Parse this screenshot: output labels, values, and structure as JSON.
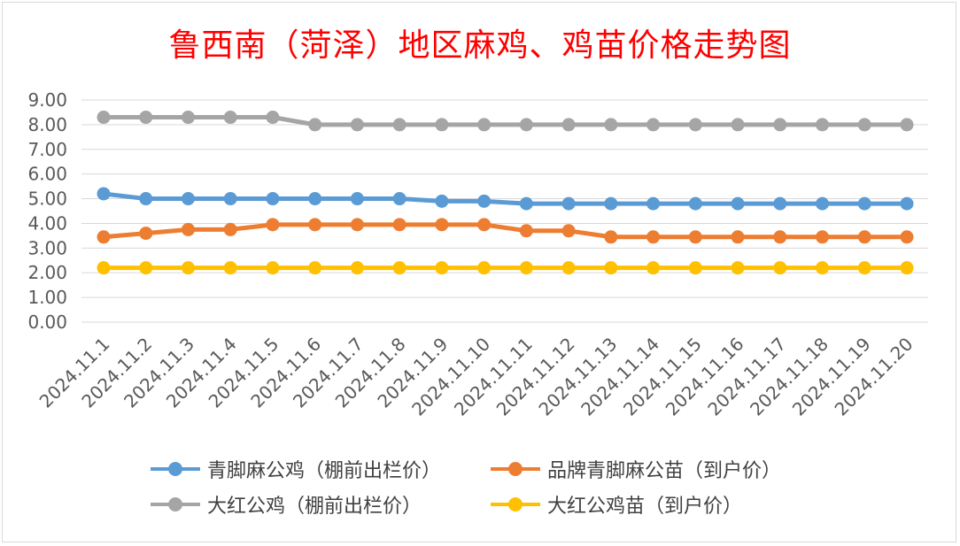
{
  "chart_data": {
    "type": "line",
    "title": "鲁西南（菏泽）地区麻鸡、鸡苗价格走势图",
    "xlabel": "",
    "ylabel": "",
    "ylim": [
      0,
      9
    ],
    "yticks": [
      "9.00",
      "8.00",
      "7.00",
      "6.00",
      "5.00",
      "4.00",
      "3.00",
      "2.00",
      "1.00",
      "0.00"
    ],
    "categories": [
      "2024.11.1",
      "2024.11.2",
      "2024.11.3",
      "2024.11.4",
      "2024.11.5",
      "2024.11.6",
      "2024.11.7",
      "2024.11.8",
      "2024.11.9",
      "2024.11.10",
      "2024.11.11",
      "2024.11.12",
      "2024.11.13",
      "2024.11.14",
      "2024.11.15",
      "2024.11.16",
      "2024.11.17",
      "2024.11.18",
      "2024.11.19",
      "2024.11.20"
    ],
    "grid": true,
    "legend_position": "bottom",
    "series": [
      {
        "name": "青脚麻公鸡（棚前出栏价）",
        "color": "#5b9bd5",
        "values": [
          5.2,
          5.0,
          5.0,
          5.0,
          5.0,
          5.0,
          5.0,
          5.0,
          4.9,
          4.9,
          4.8,
          4.8,
          4.8,
          4.8,
          4.8,
          4.8,
          4.8,
          4.8,
          4.8,
          4.8
        ]
      },
      {
        "name": "品牌青脚麻公苗（到户价）",
        "color": "#ed7d31",
        "values": [
          3.45,
          3.6,
          3.75,
          3.75,
          3.95,
          3.95,
          3.95,
          3.95,
          3.95,
          3.95,
          3.7,
          3.7,
          3.45,
          3.45,
          3.45,
          3.45,
          3.45,
          3.45,
          3.45,
          3.45
        ]
      },
      {
        "name": "大红公鸡（棚前出栏价）",
        "color": "#a5a5a5",
        "values": [
          8.3,
          8.3,
          8.3,
          8.3,
          8.3,
          8.0,
          8.0,
          8.0,
          8.0,
          8.0,
          8.0,
          8.0,
          8.0,
          8.0,
          8.0,
          8.0,
          8.0,
          8.0,
          8.0,
          8.0
        ]
      },
      {
        "name": "大红公鸡苗（到户价）",
        "color": "#ffc000",
        "values": [
          2.2,
          2.2,
          2.2,
          2.2,
          2.2,
          2.2,
          2.2,
          2.2,
          2.2,
          2.2,
          2.2,
          2.2,
          2.2,
          2.2,
          2.2,
          2.2,
          2.2,
          2.2,
          2.2,
          2.2
        ]
      }
    ]
  }
}
